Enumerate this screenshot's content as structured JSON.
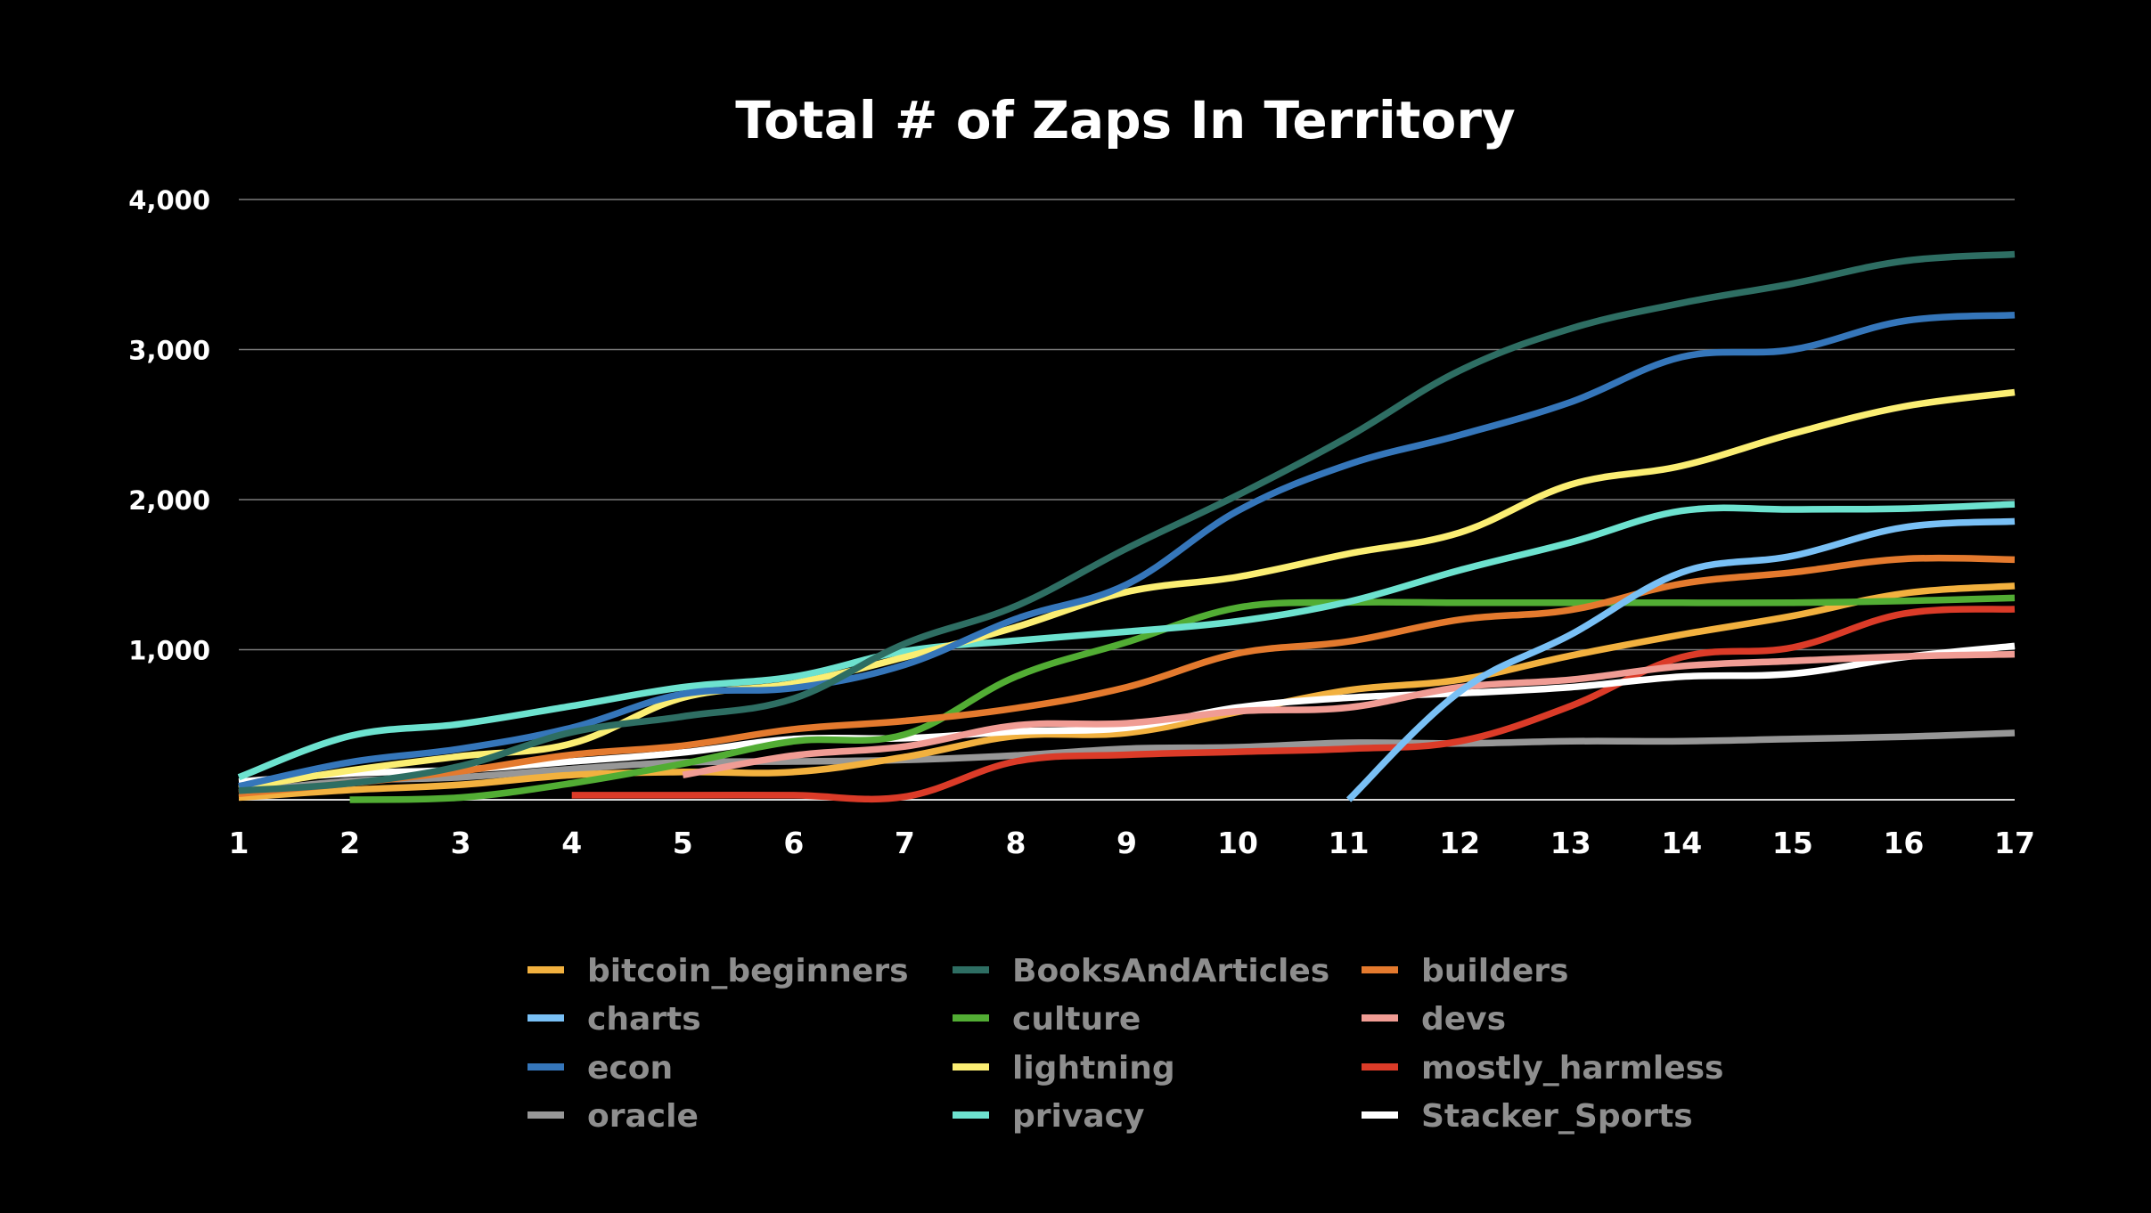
{
  "chart_data": {
    "type": "line",
    "title": "Total # of Zaps In Territory",
    "xlabel": "",
    "ylabel": "",
    "x": [
      1,
      2,
      3,
      4,
      5,
      6,
      7,
      8,
      9,
      10,
      11,
      12,
      13,
      14,
      15,
      16,
      17
    ],
    "x_tick_labels": [
      "1",
      "2",
      "3",
      "4",
      "5",
      "6",
      "7",
      "8",
      "9",
      "10",
      "11",
      "12",
      "13",
      "14",
      "15",
      "16",
      "17"
    ],
    "ylim": [
      0,
      4000
    ],
    "y_ticks": [
      1000,
      2000,
      3000,
      4000
    ],
    "y_tick_labels": [
      "1,000",
      "2,000",
      "3,000",
      "4,000"
    ],
    "grid": true,
    "smooth": true,
    "legend_position": "bottom",
    "series": [
      {
        "name": "bitcoin_beginners",
        "color": "#F2B13F",
        "values": [
          15,
          65,
          100,
          165,
          185,
          185,
          285,
          425,
          445,
          585,
          730,
          800,
          960,
          1100,
          1225,
          1375,
          1425
        ]
      },
      {
        "name": "BooksAndArticles",
        "color": "#2E6E63",
        "values": [
          60,
          110,
          225,
          450,
          555,
          675,
          1040,
          1290,
          1675,
          2030,
          2420,
          2860,
          3140,
          3310,
          3440,
          3590,
          3635
        ]
      },
      {
        "name": "builders",
        "color": "#E47A2E",
        "values": [
          40,
          110,
          190,
          300,
          360,
          470,
          525,
          610,
          750,
          975,
          1055,
          1200,
          1265,
          1440,
          1515,
          1605,
          1600
        ]
      },
      {
        "name": "charts",
        "color": "#79C0F5",
        "values": [
          null,
          null,
          null,
          null,
          null,
          null,
          null,
          null,
          null,
          null,
          0,
          720,
          1100,
          1515,
          1625,
          1815,
          1855
        ]
      },
      {
        "name": "culture",
        "color": "#52AD34",
        "values": [
          null,
          0,
          15,
          110,
          240,
          390,
          435,
          820,
          1050,
          1280,
          1315,
          1313,
          1313,
          1313,
          1313,
          1325,
          1345
        ]
      },
      {
        "name": "devs",
        "color": "#F09C94",
        "values": [
          null,
          null,
          null,
          null,
          165,
          295,
          355,
          495,
          510,
          590,
          615,
          750,
          800,
          890,
          925,
          955,
          970
        ]
      },
      {
        "name": "econ",
        "color": "#3576BA",
        "values": [
          90,
          250,
          340,
          480,
          705,
          745,
          900,
          1205,
          1435,
          1925,
          2235,
          2430,
          2650,
          2950,
          3000,
          3190,
          3230
        ]
      },
      {
        "name": "lightning",
        "color": "#FBEE73",
        "values": [
          75,
          195,
          290,
          375,
          680,
          775,
          950,
          1150,
          1385,
          1485,
          1640,
          1780,
          2100,
          2225,
          2440,
          2620,
          2715
        ]
      },
      {
        "name": "mostly_harmless",
        "color": "#DB3B28",
        "values": [
          null,
          null,
          null,
          30,
          30,
          30,
          20,
          255,
          300,
          320,
          340,
          390,
          625,
          950,
          1015,
          1240,
          1270
        ]
      },
      {
        "name": "oracle",
        "color": "#979797",
        "values": [
          50,
          125,
          150,
          205,
          250,
          255,
          265,
          295,
          340,
          350,
          380,
          375,
          390,
          390,
          405,
          420,
          445
        ]
      },
      {
        "name": "privacy",
        "color": "#6DE2CF",
        "values": [
          150,
          425,
          505,
          625,
          750,
          820,
          990,
          1060,
          1120,
          1190,
          1320,
          1530,
          1715,
          1925,
          1935,
          1940,
          1970
        ]
      },
      {
        "name": "Stacker_Sports",
        "color": "#FFFFFF",
        "values": [
          120,
          175,
          200,
          255,
          315,
          405,
          410,
          455,
          480,
          615,
          680,
          710,
          750,
          820,
          840,
          950,
          1025
        ]
      }
    ]
  }
}
